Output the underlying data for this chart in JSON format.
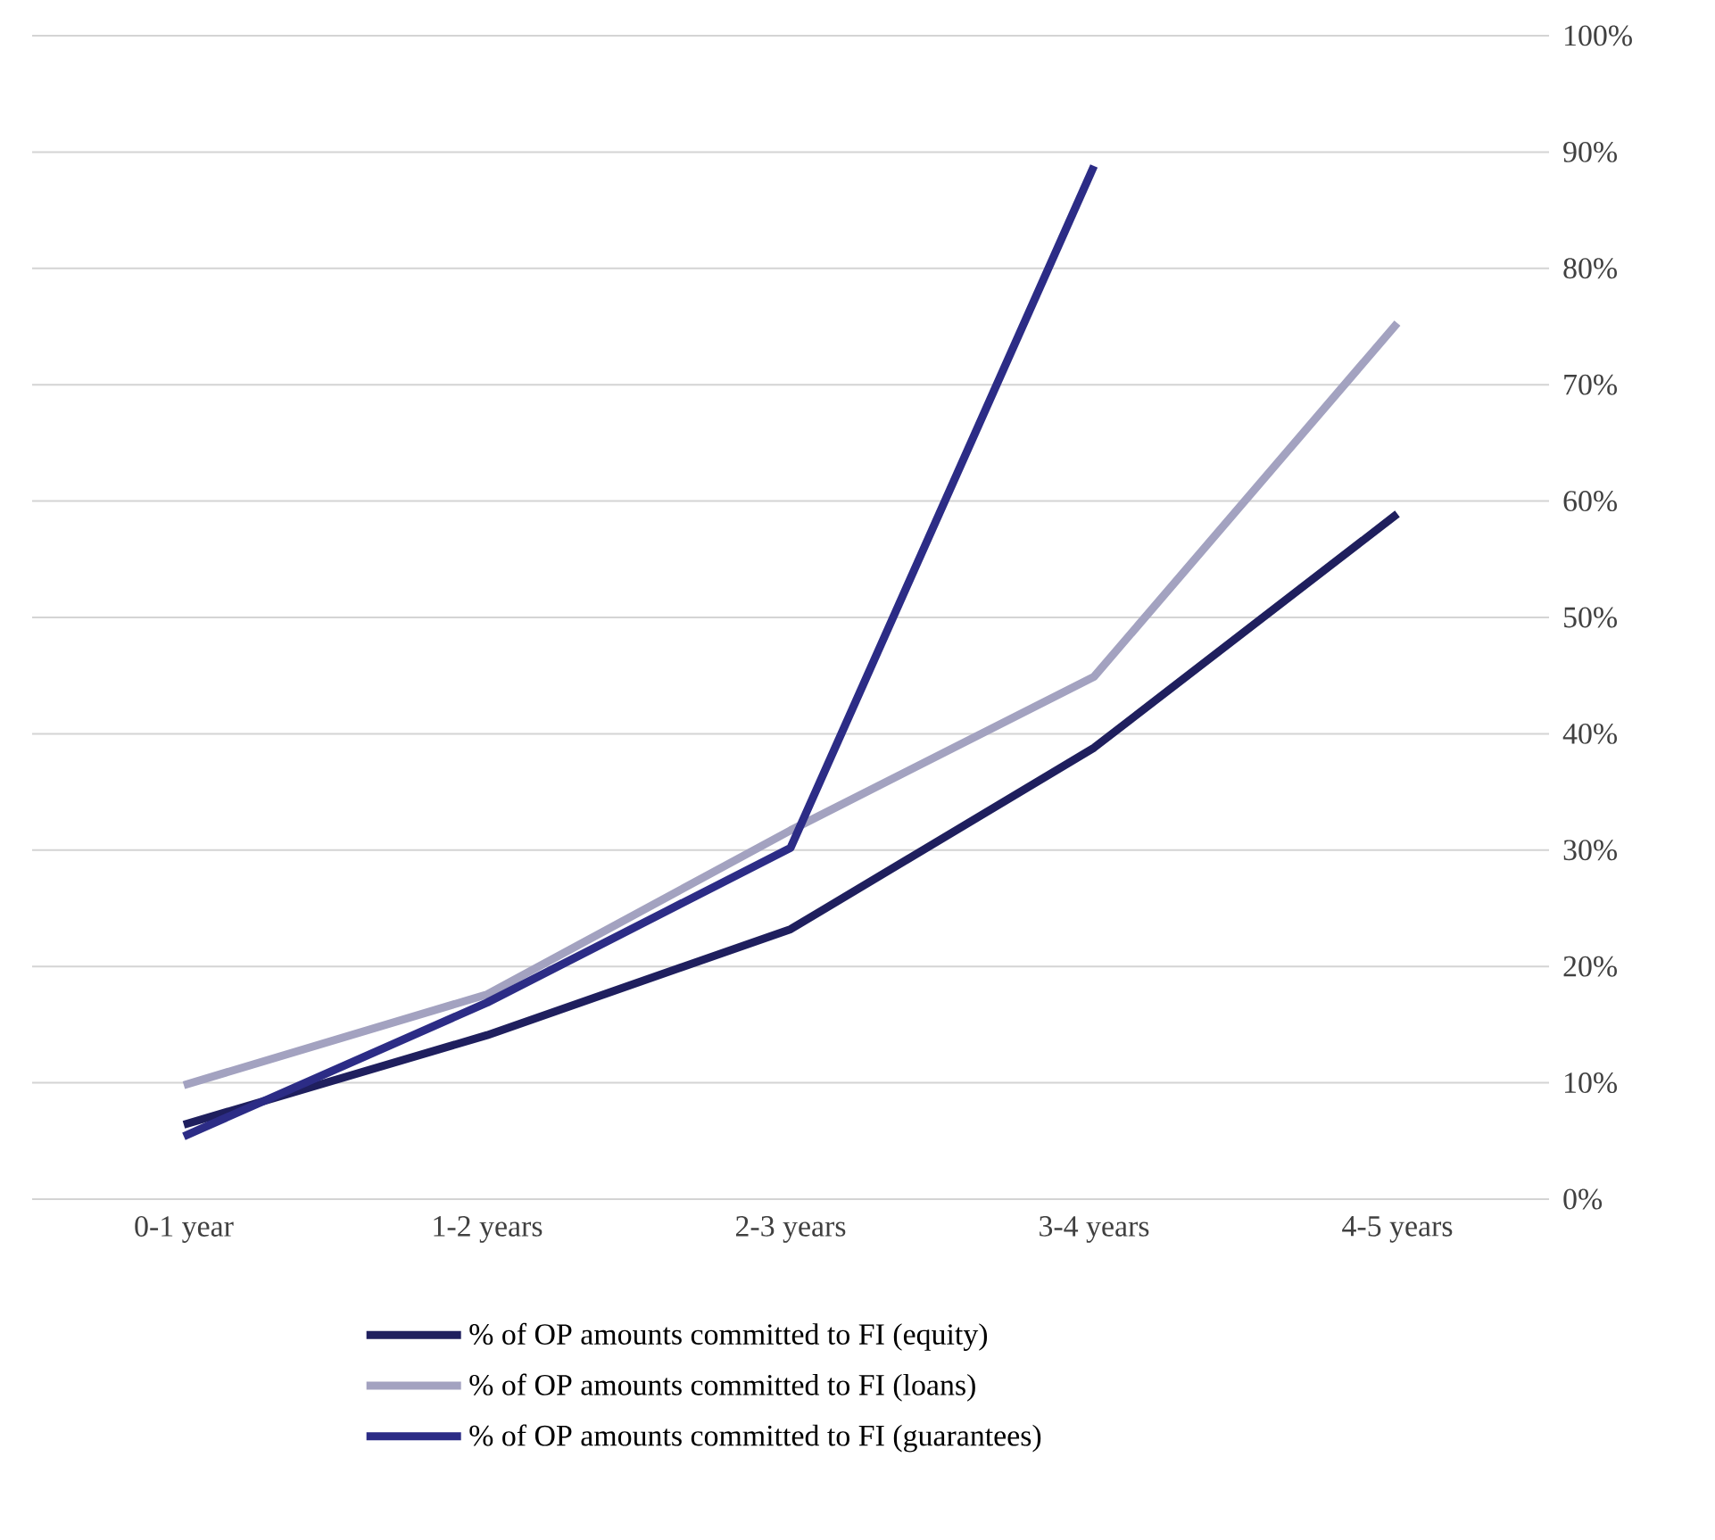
{
  "chart_data": {
    "type": "line",
    "categories": [
      "0-1 year",
      "1-2 years",
      "2-3 years",
      "3-4 years",
      "4-5 years"
    ],
    "series": [
      {
        "name": "% of OP amounts committed to FI (equity)",
        "color": "#1f1f5e",
        "values": [
          6.4,
          14.1,
          23.2,
          38.8,
          58.9
        ]
      },
      {
        "name": "% of OP amounts committed to FI (loans)",
        "color": "#a3a2c0",
        "values": [
          9.8,
          17.6,
          31.7,
          44.9,
          75.3
        ]
      },
      {
        "name": "% of OP amounts committed to FI (guarantees)",
        "color": "#2c2c86",
        "values": [
          5.4,
          16.9,
          30.2,
          88.8,
          null
        ]
      }
    ],
    "ylim": [
      0,
      100
    ],
    "yticks": [
      {
        "value": 0,
        "label": "0%"
      },
      {
        "value": 10,
        "label": "10%"
      },
      {
        "value": 20,
        "label": "20%"
      },
      {
        "value": 30,
        "label": "30%"
      },
      {
        "value": 40,
        "label": "40%"
      },
      {
        "value": 50,
        "label": "50%"
      },
      {
        "value": 60,
        "label": "60%"
      },
      {
        "value": 70,
        "label": "70%"
      },
      {
        "value": 80,
        "label": "80%"
      },
      {
        "value": 90,
        "label": "90%"
      },
      {
        "value": 100,
        "label": "100%"
      }
    ],
    "grid": "y",
    "legend": "bottom"
  }
}
